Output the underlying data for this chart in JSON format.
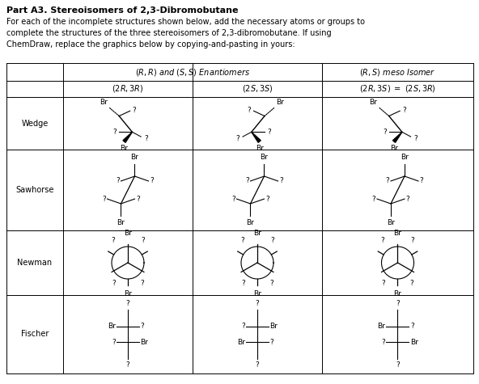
{
  "title_bold": "Part A3. Stereoisomers of 2,3-Dibromobutane",
  "body_text": "For each of the incomplete structures shown below, add the necessary atoms or groups to\ncomplete the structures of the three stereoisomers of 2,3-dibromobutane. If using\nChemDraw, replace the graphics below by copying-and-pasting in yours:",
  "row_labels": [
    "Wedge",
    "Sawhorse",
    "Newman",
    "Fischer"
  ],
  "bg_color": "#ffffff",
  "fig_w": 5.92,
  "fig_h": 4.75,
  "dpi": 100
}
